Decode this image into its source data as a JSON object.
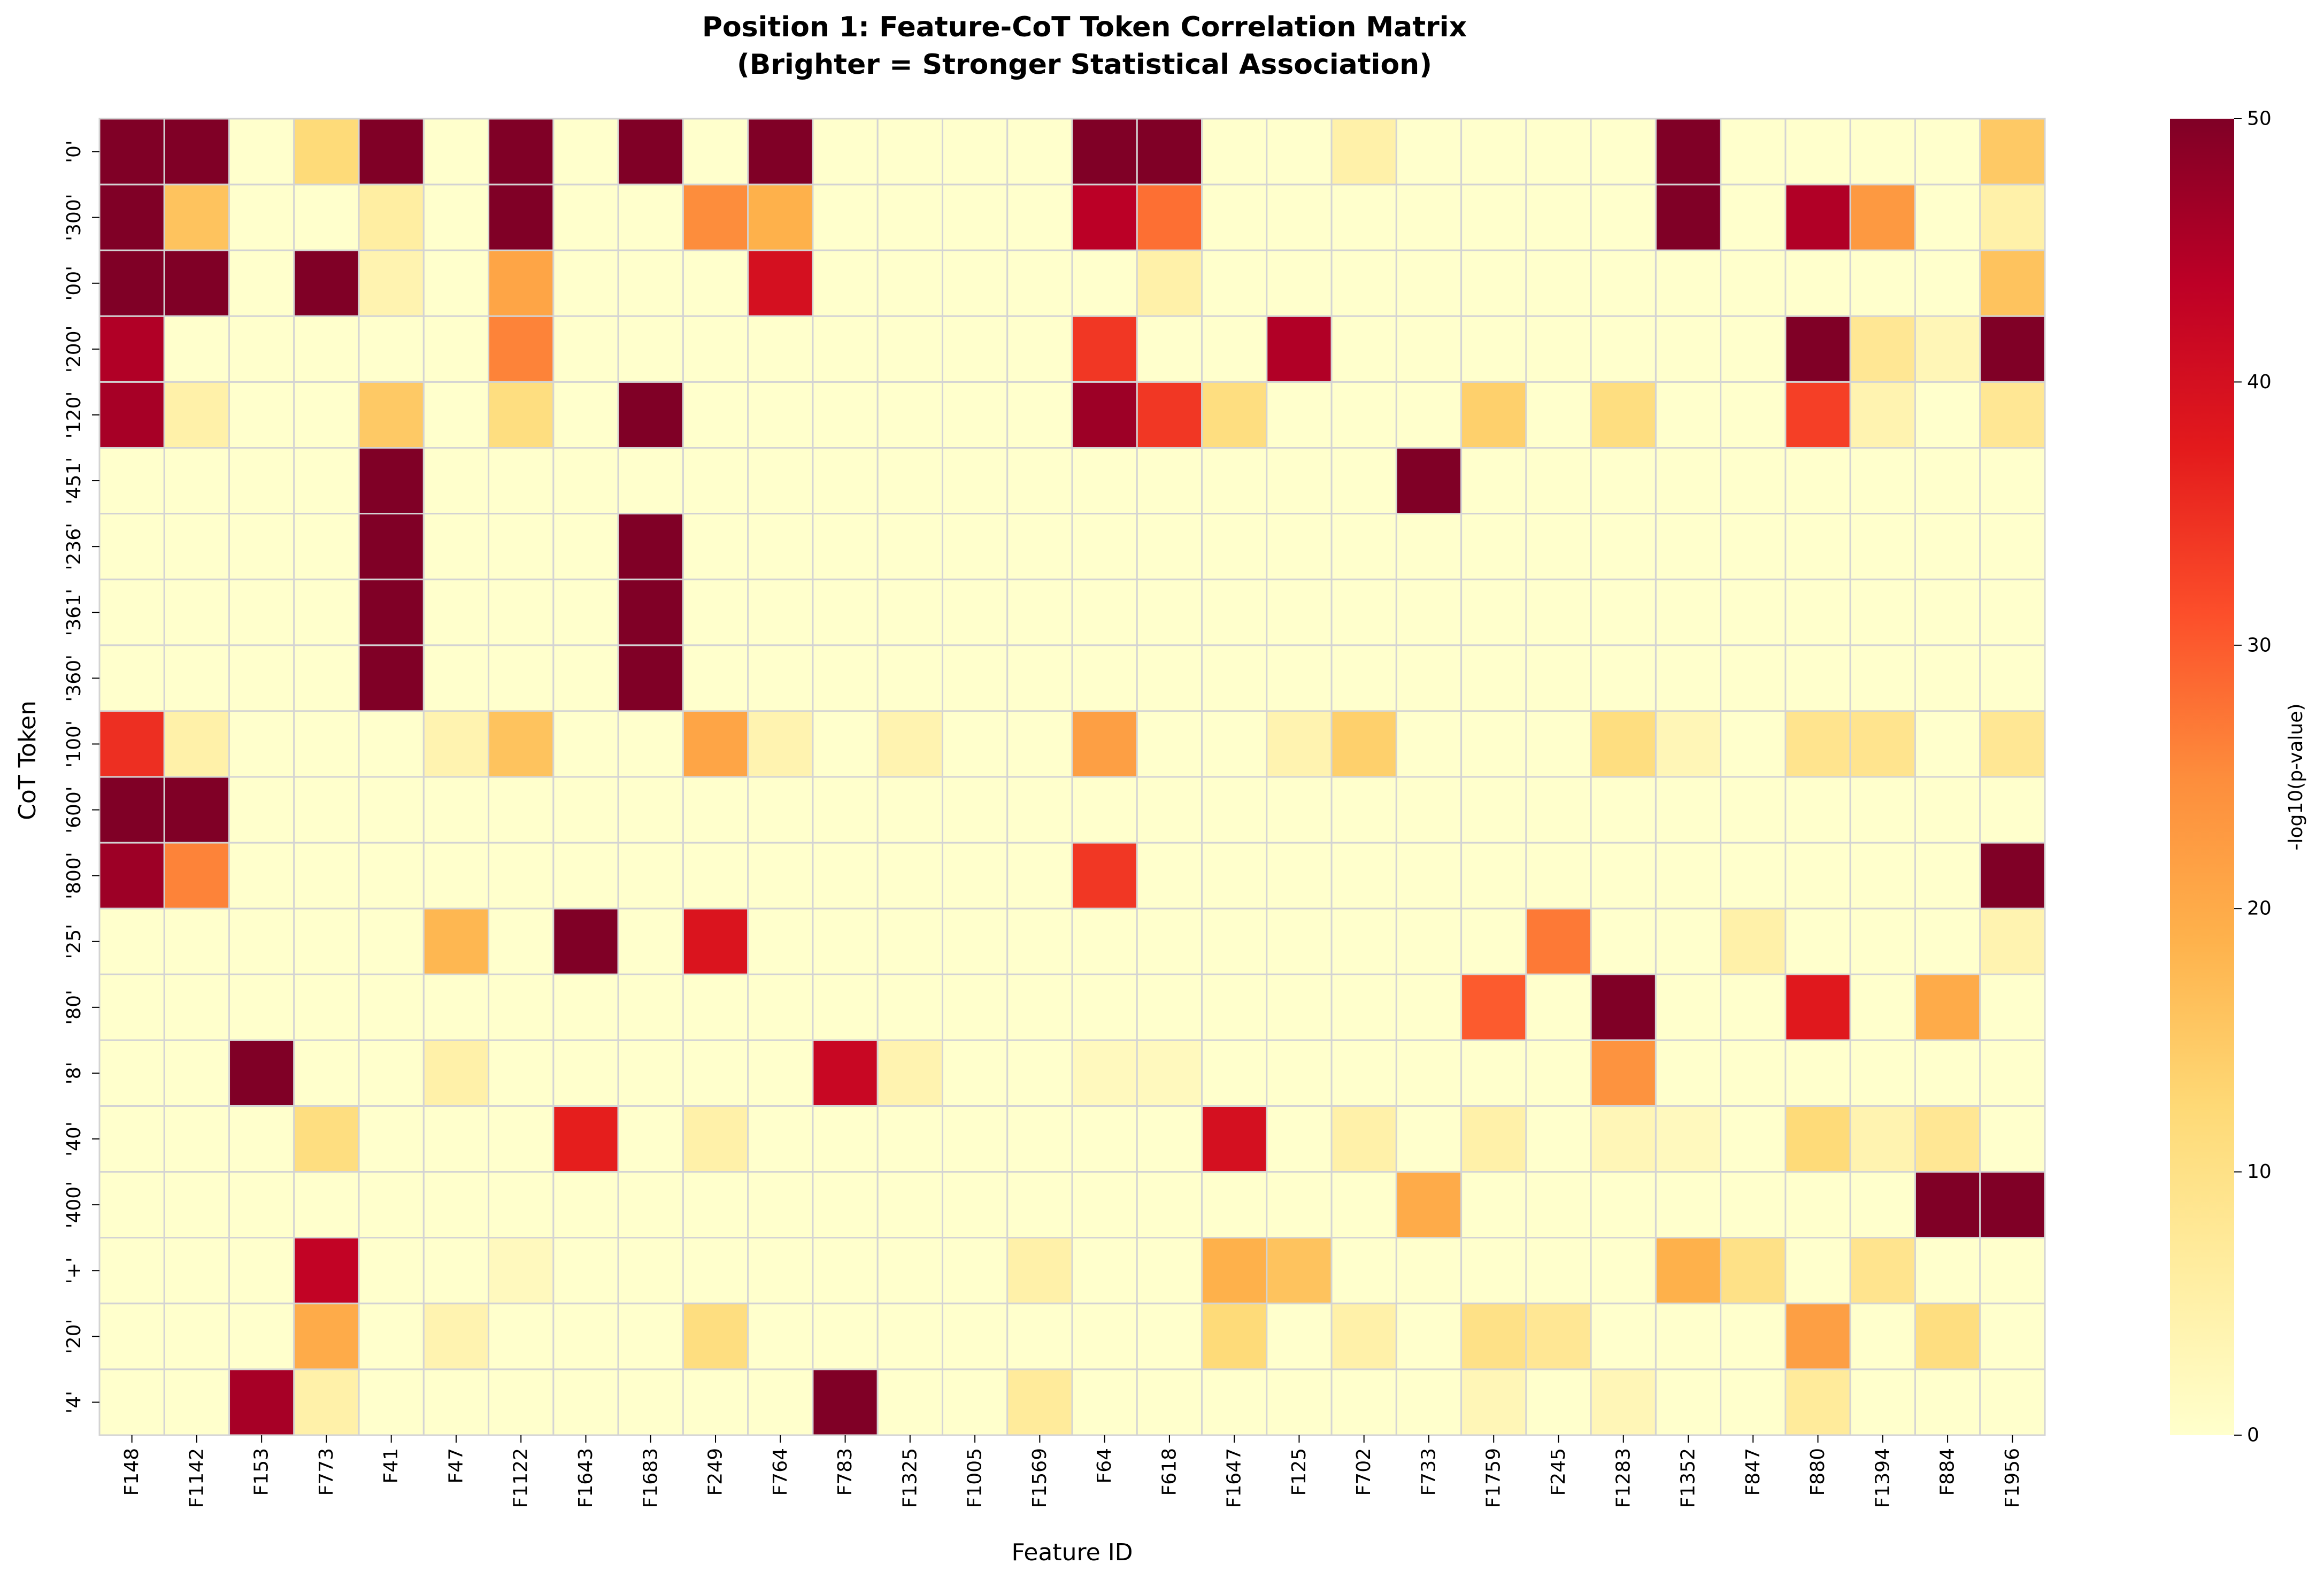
{
  "chart_data": {
    "type": "heatmap",
    "title": "Position 1: Feature-CoT Token Correlation Matrix",
    "subtitle": "(Brighter = Stronger Statistical Association)",
    "xlabel": "Feature ID",
    "ylabel": "CoT Token",
    "colorbar_label": "-log10(p-value)",
    "color_range": [
      0,
      50
    ],
    "colorbar_ticks": [
      "0",
      "10",
      "20",
      "30",
      "40",
      "50"
    ],
    "colormap": [
      "#ffffcc",
      "#ffeda0",
      "#fed976",
      "#feb24c",
      "#fd8d3c",
      "#fc4e2a",
      "#e31a1c",
      "#bd0026",
      "#800026"
    ],
    "grid_color": "#d3d3d3",
    "x_categories": [
      "F148",
      "F1142",
      "F153",
      "F773",
      "F41",
      "F47",
      "F1122",
      "F1643",
      "F1683",
      "F249",
      "F764",
      "F783",
      "F1325",
      "F1005",
      "F1569",
      "F64",
      "F618",
      "F1647",
      "F125",
      "F702",
      "F733",
      "F1759",
      "F245",
      "F1283",
      "F1352",
      "F847",
      "F880",
      "F1394",
      "F884",
      "F1956"
    ],
    "y_categories": [
      "'0'",
      "'300'",
      "'00'",
      "'200'",
      "'120'",
      "'451'",
      "'236'",
      "'361'",
      "'360'",
      "'100'",
      "'600'",
      "'800'",
      "'25'",
      "'80'",
      "'8'",
      "'40'",
      "'400'",
      "'+'",
      "'20'",
      "'4'"
    ],
    "values": [
      [
        50,
        50,
        0,
        12,
        50,
        0,
        50,
        0,
        50,
        0,
        50,
        0,
        0,
        0,
        0,
        50,
        50,
        0,
        0,
        5,
        0,
        0,
        0,
        0,
        50,
        0,
        0,
        0,
        0,
        15
      ],
      [
        50,
        16,
        0,
        0,
        6,
        0,
        50,
        0,
        0,
        25,
        19,
        0,
        0,
        0,
        0,
        44,
        28,
        0,
        0,
        0,
        0,
        0,
        0,
        0,
        50,
        0,
        45,
        23,
        0,
        5
      ],
      [
        50,
        50,
        0,
        50,
        4,
        0,
        21,
        0,
        0,
        0,
        40,
        0,
        0,
        0,
        0,
        0,
        5,
        0,
        0,
        0,
        0,
        0,
        0,
        0,
        0,
        0,
        0,
        0,
        0,
        16
      ],
      [
        45,
        0,
        0,
        0,
        0,
        0,
        26,
        0,
        0,
        0,
        0,
        0,
        0,
        0,
        0,
        34,
        0,
        0,
        45,
        0,
        0,
        0,
        0,
        0,
        0,
        0,
        50,
        8,
        3,
        50
      ],
      [
        46,
        5,
        0,
        0,
        15,
        0,
        11,
        0,
        50,
        0,
        0,
        0,
        0,
        0,
        0,
        47,
        34,
        11,
        0,
        0,
        0,
        14,
        0,
        11,
        0,
        0,
        33,
        4,
        0,
        8
      ],
      [
        0,
        0,
        0,
        0,
        50,
        0,
        0,
        0,
        0,
        0,
        0,
        0,
        0,
        0,
        0,
        0,
        0,
        0,
        0,
        0,
        50,
        0,
        0,
        0,
        0,
        0,
        0,
        0,
        0,
        0
      ],
      [
        0,
        0,
        0,
        0,
        50,
        0,
        0,
        0,
        50,
        0,
        0,
        0,
        0,
        0,
        0,
        0,
        0,
        0,
        0,
        0,
        0,
        0,
        0,
        0,
        0,
        0,
        0,
        0,
        0,
        0
      ],
      [
        0,
        0,
        0,
        0,
        50,
        0,
        0,
        0,
        50,
        0,
        0,
        0,
        0,
        0,
        0,
        0,
        0,
        0,
        0,
        0,
        0,
        0,
        0,
        0,
        0,
        0,
        0,
        0,
        0,
        0
      ],
      [
        0,
        0,
        0,
        0,
        50,
        0,
        0,
        0,
        50,
        0,
        0,
        0,
        0,
        0,
        0,
        0,
        0,
        0,
        0,
        0,
        0,
        0,
        0,
        0,
        0,
        0,
        0,
        0,
        0,
        0
      ],
      [
        35,
        5,
        0,
        0,
        0,
        4,
        16,
        0,
        0,
        21,
        4,
        0,
        4,
        0,
        0,
        22,
        0,
        0,
        4,
        14,
        0,
        0,
        0,
        11,
        3,
        0,
        9,
        9,
        0,
        8
      ],
      [
        50,
        50,
        0,
        0,
        0,
        0,
        0,
        0,
        0,
        0,
        0,
        0,
        0,
        0,
        0,
        0,
        0,
        0,
        0,
        0,
        0,
        0,
        0,
        0,
        0,
        0,
        0,
        0,
        0,
        0
      ],
      [
        47,
        26,
        0,
        0,
        0,
        0,
        0,
        0,
        0,
        0,
        0,
        0,
        0,
        0,
        0,
        34,
        0,
        0,
        0,
        0,
        0,
        0,
        0,
        0,
        0,
        0,
        0,
        0,
        0,
        50
      ],
      [
        0,
        0,
        0,
        0,
        0,
        18,
        0,
        50,
        0,
        39,
        0,
        0,
        0,
        0,
        0,
        0,
        0,
        0,
        0,
        0,
        0,
        0,
        27,
        0,
        0,
        5,
        0,
        0,
        0,
        4
      ],
      [
        0,
        0,
        0,
        0,
        0,
        0,
        0,
        0,
        0,
        0,
        0,
        0,
        0,
        0,
        0,
        0,
        0,
        0,
        0,
        0,
        0,
        30,
        0,
        50,
        0,
        0,
        38,
        0,
        20,
        0
      ],
      [
        0,
        0,
        50,
        0,
        0,
        5,
        0,
        0,
        0,
        0,
        0,
        42,
        4,
        0,
        0,
        2,
        2,
        0,
        0,
        0,
        0,
        0,
        0,
        24,
        0,
        0,
        0,
        0,
        0,
        0
      ],
      [
        0,
        0,
        0,
        11,
        0,
        0,
        0,
        37,
        0,
        5,
        0,
        0,
        0,
        0,
        0,
        0,
        0,
        40,
        0,
        5,
        0,
        5,
        0,
        3,
        2,
        0,
        12,
        4,
        8,
        0
      ],
      [
        0,
        0,
        0,
        0,
        0,
        0,
        0,
        0,
        0,
        0,
        0,
        0,
        0,
        0,
        0,
        0,
        0,
        0,
        0,
        0,
        20,
        0,
        0,
        0,
        0,
        0,
        0,
        0,
        50,
        50
      ],
      [
        0,
        0,
        0,
        43,
        0,
        0,
        2,
        0,
        0,
        0,
        0,
        0,
        0,
        0,
        5,
        0,
        0,
        19,
        16,
        0,
        0,
        0,
        0,
        0,
        19,
        10,
        0,
        9,
        0,
        0
      ],
      [
        0,
        0,
        0,
        20,
        0,
        4,
        0,
        0,
        0,
        11,
        0,
        0,
        0,
        0,
        0,
        0,
        0,
        12,
        0,
        5,
        0,
        10,
        8,
        0,
        0,
        0,
        22,
        0,
        11,
        0
      ],
      [
        0,
        0,
        46,
        5,
        0,
        0,
        0,
        0,
        0,
        0,
        0,
        50,
        0,
        0,
        7,
        0,
        0,
        0,
        0,
        0,
        0,
        3,
        0,
        3,
        0,
        0,
        7,
        0,
        0,
        0
      ]
    ]
  }
}
